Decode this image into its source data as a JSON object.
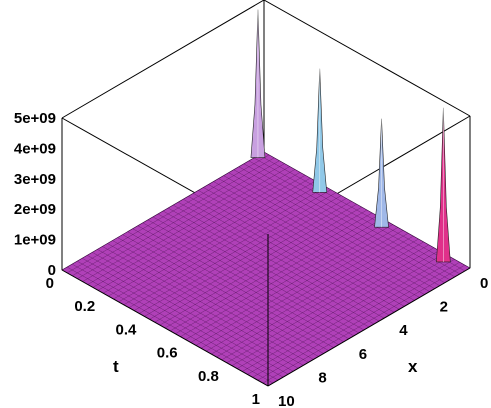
{
  "chart_data": {
    "type": "surface",
    "xlabel": "x",
    "ylabel": "t",
    "zlabel": "",
    "x_ticks": [
      "0",
      "2",
      "4",
      "6",
      "8",
      "10"
    ],
    "t_ticks": [
      "0",
      "0.2",
      "0.4",
      "0.6",
      "0.8",
      "1"
    ],
    "z_ticks": [
      "0",
      "1e+09",
      "2e+09",
      "3e+09",
      "4e+09",
      "5e+09"
    ],
    "xlim": [
      0,
      10
    ],
    "tlim": [
      0,
      1
    ],
    "zlim": [
      0,
      5000000000
    ],
    "base_value": 0,
    "surface_color": "#b040b8",
    "mesh_color": "#3a0a40",
    "peaks": [
      {
        "x": 0.3,
        "t": 0.9,
        "z": 5000000000,
        "color": "#e0308a"
      },
      {
        "x": 0.3,
        "t": 0.6,
        "z": 3500000000,
        "color": "#a0b8e8"
      },
      {
        "x": 0.3,
        "t": 0.3,
        "z": 4000000000,
        "color": "#90c8e8"
      },
      {
        "x": 0.3,
        "t": 0.0,
        "z": 4800000000,
        "color": "#c8a0e0"
      }
    ]
  }
}
